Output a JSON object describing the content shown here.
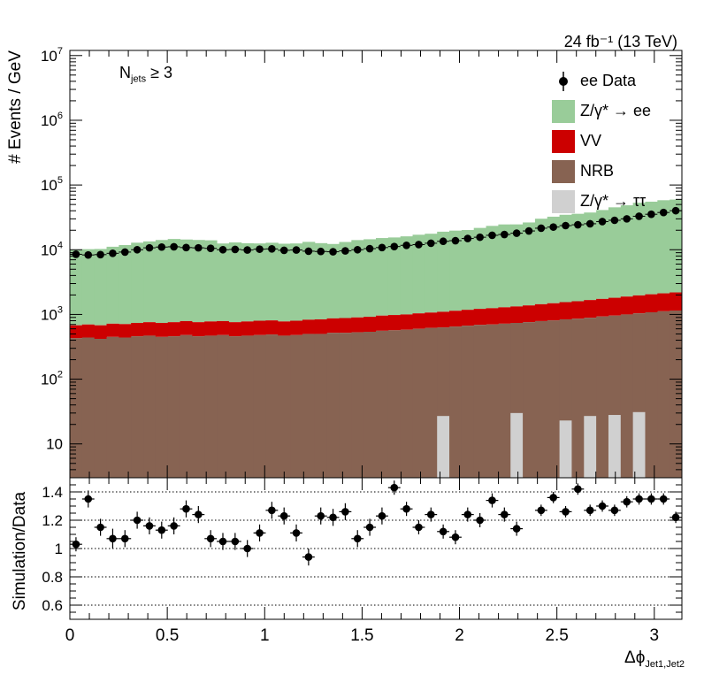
{
  "header": {
    "lumi": "24 fb⁻¹ (13 TeV)",
    "selection": "N",
    "selection_sub": "jets",
    "selection_tail": " ≥ 3"
  },
  "axes": {
    "top_ylabel": "# Events / GeV",
    "bottom_ylabel": "Simulation/Data",
    "xlabel": "Δϕ",
    "xlabel_sub": "Jet1,Jet2"
  },
  "legend": [
    {
      "label": "ee Data",
      "kind": "marker",
      "color": "#000000"
    },
    {
      "label": "Z/γ* → ee",
      "kind": "fill",
      "color": "#99cc99"
    },
    {
      "label": "VV",
      "kind": "fill",
      "color": "#cc0000"
    },
    {
      "label": "NRB",
      "kind": "fill",
      "color": "#876352"
    },
    {
      "label": "Z/γ* → ττ",
      "kind": "fill",
      "color": "#d0d0d0"
    }
  ],
  "chart_data": [
    {
      "type": "bar",
      "stacked": true,
      "log_y": true,
      "ylabel": "# Events / GeV",
      "xlim": [
        0,
        3.1416
      ],
      "ylim": [
        3,
        12000000
      ],
      "bins": 50,
      "x_ticks": [
        0,
        0.5,
        1,
        1.5,
        2,
        2.5,
        3
      ],
      "y_ticks": [
        "10",
        "10²",
        "10³",
        "10⁴",
        "10⁵",
        "10⁶",
        "10⁷"
      ],
      "series": [
        {
          "name": "NRB",
          "color": "#876352",
          "values": [
            430,
            440,
            420,
            450,
            440,
            460,
            470,
            450,
            460,
            480,
            460,
            470,
            480,
            460,
            470,
            480,
            490,
            470,
            480,
            500,
            500,
            520,
            520,
            530,
            540,
            560,
            570,
            580,
            600,
            620,
            630,
            650,
            670,
            690,
            700,
            720,
            740,
            760,
            790,
            810,
            840,
            860,
            890,
            930,
            960,
            1000,
            1040,
            1080,
            1120,
            1150
          ]
        },
        {
          "name": "VV",
          "color": "#cc0000",
          "values": [
            250,
            260,
            260,
            270,
            270,
            280,
            290,
            290,
            300,
            310,
            300,
            310,
            310,
            300,
            310,
            320,
            320,
            310,
            320,
            330,
            340,
            350,
            360,
            370,
            380,
            400,
            410,
            420,
            440,
            450,
            470,
            490,
            510,
            530,
            550,
            570,
            590,
            620,
            650,
            680,
            710,
            740,
            780,
            810,
            850,
            890,
            930,
            970,
            1000,
            1040
          ]
        },
        {
          "name": "Z/γ* → ee",
          "color": "#99cc99",
          "values": [
            9400,
            9500,
            9600,
            10400,
            11100,
            12100,
            12700,
            13400,
            13900,
            13600,
            13400,
            13200,
            11700,
            12200,
            11800,
            11700,
            12000,
            11600,
            11700,
            12400,
            11800,
            11400,
            12300,
            13200,
            13600,
            14200,
            14500,
            15100,
            16000,
            16600,
            17900,
            18600,
            19000,
            20500,
            22100,
            23300,
            23300,
            25000,
            28700,
            30900,
            33100,
            34300,
            35900,
            39300,
            43400,
            46700,
            51200,
            53200,
            56100,
            57400
          ]
        },
        {
          "name": "Z/γ* → ττ",
          "color": "#d0d0d0",
          "bins_filled": [
            {
              "bin": 30,
              "value": 27
            },
            {
              "bin": 36,
              "value": 30
            },
            {
              "bin": 40,
              "value": 23
            },
            {
              "bin": 42,
              "value": 27
            },
            {
              "bin": 44,
              "value": 28
            },
            {
              "bin": 46,
              "value": 31
            }
          ]
        }
      ],
      "data": {
        "name": "ee Data",
        "values": [
          8500,
          8300,
          8400,
          8800,
          9200,
          10000,
          10700,
          11000,
          11100,
          10800,
          10700,
          10500,
          10000,
          10100,
          9900,
          10200,
          10300,
          9800,
          9900,
          9500,
          9400,
          9300,
          9600,
          10000,
          10400,
          10800,
          11200,
          11700,
          12000,
          12600,
          13500,
          13800,
          14900,
          15600,
          16700,
          17200,
          18000,
          19500,
          21500,
          22400,
          23600,
          24300,
          25200,
          27200,
          28500,
          30000,
          32900,
          35300,
          37600,
          40100
        ]
      }
    },
    {
      "type": "scatter",
      "ylabel": "Simulation/Data",
      "xlabel": "Δϕ Jet1,Jet2",
      "xlim": [
        0,
        3.1416
      ],
      "ylim": [
        0.5,
        1.5
      ],
      "grid_y": [
        0.6,
        0.8,
        1.0,
        1.2,
        1.4
      ],
      "y_tick_labels": [
        "0.6",
        "0.8",
        "1",
        "1.2",
        "1.4"
      ],
      "x_tick_labels": [
        "0",
        "0.5",
        "1",
        "1.5",
        "2",
        "2.5",
        "3"
      ],
      "values": [
        1.03,
        1.35,
        1.15,
        1.07,
        1.07,
        1.2,
        1.16,
        1.13,
        1.16,
        1.28,
        1.24,
        1.07,
        1.05,
        1.05,
        1.0,
        1.11,
        1.27,
        1.23,
        1.11,
        0.94,
        1.23,
        1.22,
        1.26,
        1.07,
        1.15,
        1.23,
        1.43,
        1.28,
        1.15,
        1.24,
        1.12,
        1.08,
        1.24,
        1.2,
        1.34,
        1.24,
        1.14,
        null,
        1.27,
        1.36,
        1.26,
        1.42,
        1.27,
        1.3,
        1.27,
        1.33,
        1.35,
        1.35,
        1.35,
        1.22
      ],
      "errors": [
        0.05,
        0.06,
        0.06,
        0.07,
        0.06,
        0.06,
        0.06,
        0.06,
        0.06,
        0.06,
        0.06,
        0.06,
        0.06,
        0.06,
        0.06,
        0.06,
        0.06,
        0.06,
        0.06,
        0.06,
        0.06,
        0.06,
        0.06,
        0.06,
        0.06,
        0.06,
        0.05,
        0.05,
        0.05,
        0.05,
        0.05,
        0.05,
        0.05,
        0.05,
        0.05,
        0.05,
        0.05,
        0.05,
        0.04,
        0.04,
        0.04,
        0.04,
        0.04,
        0.04,
        0.04,
        0.04,
        0.04,
        0.04,
        0.04,
        0.04
      ]
    }
  ]
}
